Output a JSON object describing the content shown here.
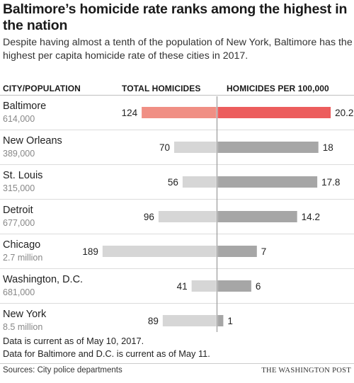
{
  "header": {
    "title": "Baltimore’s homicide rate ranks among the highest in the nation",
    "subtitle": "Despite having almost a tenth of the population of New York, Baltimore has the highest per capita homicide rate of these cities in 2017."
  },
  "columns": {
    "city": "CITY/POPULATION",
    "total": "TOTAL HOMICIDES",
    "rate": "HOMICIDES PER 100,000"
  },
  "chart_data": {
    "type": "bar",
    "categories": [
      "Baltimore",
      "New Orleans",
      "St. Louis",
      "Detroit",
      "Chicago",
      "Washington, D.C.",
      "New York"
    ],
    "populations": [
      "614,000",
      "389,000",
      "315,000",
      "677,000",
      "2.7 million",
      "681,000",
      "8.5 million"
    ],
    "series": [
      {
        "name": "TOTAL HOMICIDES",
        "values": [
          124,
          70,
          56,
          96,
          189,
          41,
          89
        ]
      },
      {
        "name": "HOMICIDES PER 100,000",
        "values": [
          20.2,
          18,
          17.8,
          14.2,
          7,
          6,
          1
        ]
      }
    ],
    "value_labels": {
      "total": [
        "124",
        "70",
        "56",
        "96",
        "189",
        "41",
        "89"
      ],
      "rate": [
        "20.2",
        "18",
        "17.8",
        "14.2",
        "7",
        "6",
        "1"
      ]
    },
    "highlight": "Baltimore",
    "colors": {
      "total_highlight": "#f08f84",
      "rate_highlight": "#ec5d5d",
      "total_default": "#d6d6d6",
      "rate_default": "#a6a6a6",
      "divider": "#9a9a9a",
      "row_rule": "#dcdcdc"
    }
  },
  "notes": {
    "line1": "Data is current as of May 10, 2017.",
    "line2": "Data for Baltimore and D.C. is current as of May 11."
  },
  "footer": {
    "source": "Sources: City police departments",
    "brand": "THE WASHINGTON POST"
  }
}
